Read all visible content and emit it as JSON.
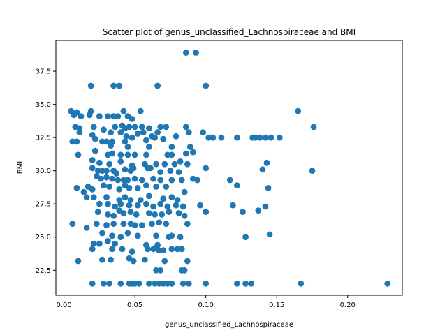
{
  "chart_data": {
    "type": "scatter",
    "title": "Scatter plot of genus_unclassified_Lachnospiraceae and BMI",
    "xlabel": "genus_unclassified_Lachnospiraceae",
    "ylabel": "BMI",
    "xlim": [
      -0.0057,
      0.2385
    ],
    "ylim": [
      20.62,
      39.82
    ],
    "xticks": [
      0.0,
      0.05,
      0.1,
      0.15,
      0.2
    ],
    "xtick_labels": [
      "0.00",
      "0.05",
      "0.10",
      "0.15",
      "0.20"
    ],
    "yticks": [
      22.5,
      25.0,
      27.5,
      30.0,
      32.5,
      35.0,
      37.5
    ],
    "ytick_labels": [
      "22.5",
      "25.0",
      "27.5",
      "30.0",
      "32.5",
      "35.0",
      "37.5"
    ],
    "grid": false,
    "marker_color": "#1f77b4",
    "points": [
      [
        0.086,
        38.9
      ],
      [
        0.093,
        38.9
      ],
      [
        0.019,
        36.4
      ],
      [
        0.035,
        36.4
      ],
      [
        0.039,
        36.4
      ],
      [
        0.066,
        36.4
      ],
      [
        0.1,
        36.4
      ],
      [
        0.005,
        34.5
      ],
      [
        0.009,
        34.4
      ],
      [
        0.019,
        34.5
      ],
      [
        0.042,
        34.5
      ],
      [
        0.054,
        34.5
      ],
      [
        0.165,
        34.5
      ],
      [
        0.007,
        34.2
      ],
      [
        0.012,
        34.1
      ],
      [
        0.018,
        34.2
      ],
      [
        0.025,
        34.1
      ],
      [
        0.031,
        34.1
      ],
      [
        0.035,
        34.1
      ],
      [
        0.038,
        34.1
      ],
      [
        0.045,
        34.1
      ],
      [
        0.048,
        33.9
      ],
      [
        0.008,
        33.3
      ],
      [
        0.011,
        33.2
      ],
      [
        0.021,
        33.3
      ],
      [
        0.028,
        33.1
      ],
      [
        0.036,
        33.3
      ],
      [
        0.041,
        33.4
      ],
      [
        0.043,
        33.2
      ],
      [
        0.046,
        33.3
      ],
      [
        0.05,
        33.3
      ],
      [
        0.055,
        33.3
      ],
      [
        0.06,
        33.2
      ],
      [
        0.068,
        33.3
      ],
      [
        0.072,
        33.3
      ],
      [
        0.086,
        33.3
      ],
      [
        0.176,
        33.3
      ],
      [
        0.011,
        32.9
      ],
      [
        0.02,
        32.7
      ],
      [
        0.033,
        32.9
      ],
      [
        0.04,
        32.9
      ],
      [
        0.044,
        32.6
      ],
      [
        0.052,
        32.8
      ],
      [
        0.056,
        32.9
      ],
      [
        0.062,
        32.6
      ],
      [
        0.066,
        32.9
      ],
      [
        0.079,
        32.6
      ],
      [
        0.088,
        32.9
      ],
      [
        0.098,
        32.9
      ],
      [
        0.006,
        32.2
      ],
      [
        0.009,
        32.2
      ],
      [
        0.022,
        32.4
      ],
      [
        0.027,
        32.2
      ],
      [
        0.03,
        32.2
      ],
      [
        0.034,
        32.2
      ],
      [
        0.043,
        32.2
      ],
      [
        0.048,
        32.5
      ],
      [
        0.058,
        32.3
      ],
      [
        0.064,
        32.5
      ],
      [
        0.07,
        32.4
      ],
      [
        0.102,
        32.5
      ],
      [
        0.105,
        32.5
      ],
      [
        0.111,
        32.5
      ],
      [
        0.122,
        32.5
      ],
      [
        0.133,
        32.5
      ],
      [
        0.135,
        32.5
      ],
      [
        0.138,
        32.5
      ],
      [
        0.142,
        32.5
      ],
      [
        0.146,
        32.5
      ],
      [
        0.152,
        32.5
      ],
      [
        0.033,
        31.9
      ],
      [
        0.045,
        31.8
      ],
      [
        0.06,
        31.8
      ],
      [
        0.076,
        31.8
      ],
      [
        0.089,
        31.8
      ],
      [
        0.022,
        31.5
      ],
      [
        0.031,
        31.2
      ],
      [
        0.034,
        31.3
      ],
      [
        0.04,
        31.2
      ],
      [
        0.045,
        31.2
      ],
      [
        0.05,
        31.2
      ],
      [
        0.058,
        31.2
      ],
      [
        0.073,
        31.2
      ],
      [
        0.076,
        31.2
      ],
      [
        0.086,
        31.3
      ],
      [
        0.091,
        31.4
      ],
      [
        0.01,
        31.2
      ],
      [
        0.02,
        30.8
      ],
      [
        0.025,
        30.6
      ],
      [
        0.032,
        30.5
      ],
      [
        0.04,
        30.7
      ],
      [
        0.048,
        30.4
      ],
      [
        0.057,
        30.5
      ],
      [
        0.065,
        30.5
      ],
      [
        0.071,
        30.5
      ],
      [
        0.078,
        30.5
      ],
      [
        0.082,
        30.7
      ],
      [
        0.087,
        30.5
      ],
      [
        0.143,
        30.6
      ],
      [
        0.02,
        30.2
      ],
      [
        0.024,
        30.0
      ],
      [
        0.027,
        30.0
      ],
      [
        0.03,
        30.0
      ],
      [
        0.035,
        30.0
      ],
      [
        0.037,
        29.8
      ],
      [
        0.043,
        30.1
      ],
      [
        0.047,
        30.0
      ],
      [
        0.049,
        30.2
      ],
      [
        0.059,
        30.2
      ],
      [
        0.061,
        30.2
      ],
      [
        0.068,
        29.9
      ],
      [
        0.075,
        30.0
      ],
      [
        0.081,
        29.9
      ],
      [
        0.1,
        30.2
      ],
      [
        0.14,
        30.1
      ],
      [
        0.175,
        30.0
      ],
      [
        0.023,
        29.6
      ],
      [
        0.026,
        29.4
      ],
      [
        0.03,
        29.5
      ],
      [
        0.034,
        29.4
      ],
      [
        0.038,
        29.3
      ],
      [
        0.042,
        29.3
      ],
      [
        0.045,
        29.3
      ],
      [
        0.05,
        29.4
      ],
      [
        0.055,
        29.3
      ],
      [
        0.063,
        29.4
      ],
      [
        0.068,
        29.3
      ],
      [
        0.076,
        29.3
      ],
      [
        0.083,
        29.3
      ],
      [
        0.091,
        29.4
      ],
      [
        0.094,
        29.3
      ],
      [
        0.117,
        29.3
      ],
      [
        0.009,
        28.7
      ],
      [
        0.014,
        28.4
      ],
      [
        0.017,
        28.8
      ],
      [
        0.02,
        28.6
      ],
      [
        0.028,
        28.9
      ],
      [
        0.032,
        28.8
      ],
      [
        0.039,
        28.6
      ],
      [
        0.043,
        28.9
      ],
      [
        0.046,
        28.7
      ],
      [
        0.052,
        28.7
      ],
      [
        0.058,
        28.9
      ],
      [
        0.065,
        28.8
      ],
      [
        0.072,
        28.8
      ],
      [
        0.085,
        28.4
      ],
      [
        0.122,
        28.9
      ],
      [
        0.144,
        28.7
      ],
      [
        0.016,
        28.0
      ],
      [
        0.021,
        28.0
      ],
      [
        0.03,
        28.0
      ],
      [
        0.039,
        27.8
      ],
      [
        0.043,
        28.0
      ],
      [
        0.047,
        27.8
      ],
      [
        0.054,
        27.8
      ],
      [
        0.06,
        28.1
      ],
      [
        0.07,
        27.9
      ],
      [
        0.076,
        28.0
      ],
      [
        0.08,
        27.8
      ],
      [
        0.025,
        27.5
      ],
      [
        0.031,
        27.5
      ],
      [
        0.036,
        27.3
      ],
      [
        0.04,
        27.5
      ],
      [
        0.046,
        27.4
      ],
      [
        0.052,
        27.4
      ],
      [
        0.058,
        27.5
      ],
      [
        0.063,
        27.3
      ],
      [
        0.068,
        27.5
      ],
      [
        0.073,
        27.3
      ],
      [
        0.079,
        27.4
      ],
      [
        0.084,
        27.3
      ],
      [
        0.096,
        27.4
      ],
      [
        0.119,
        27.4
      ],
      [
        0.142,
        27.3
      ],
      [
        0.137,
        27.0
      ],
      [
        0.024,
        26.9
      ],
      [
        0.031,
        26.7
      ],
      [
        0.035,
        26.6
      ],
      [
        0.039,
        27.0
      ],
      [
        0.042,
        26.8
      ],
      [
        0.047,
        26.9
      ],
      [
        0.051,
        26.7
      ],
      [
        0.06,
        26.8
      ],
      [
        0.064,
        26.7
      ],
      [
        0.069,
        26.7
      ],
      [
        0.074,
        26.9
      ],
      [
        0.081,
        26.8
      ],
      [
        0.085,
        26.6
      ],
      [
        0.1,
        26.9
      ],
      [
        0.126,
        26.9
      ],
      [
        0.006,
        26.0
      ],
      [
        0.016,
        25.7
      ],
      [
        0.023,
        26.0
      ],
      [
        0.03,
        25.9
      ],
      [
        0.035,
        26.0
      ],
      [
        0.042,
        26.0
      ],
      [
        0.047,
        26.0
      ],
      [
        0.05,
        25.9
      ],
      [
        0.055,
        25.9
      ],
      [
        0.062,
        26.0
      ],
      [
        0.067,
        26.1
      ],
      [
        0.072,
        26.0
      ],
      [
        0.087,
        26.0
      ],
      [
        0.027,
        25.3
      ],
      [
        0.034,
        25.1
      ],
      [
        0.04,
        25.0
      ],
      [
        0.045,
        25.3
      ],
      [
        0.052,
        25.1
      ],
      [
        0.065,
        25.1
      ],
      [
        0.074,
        25.0
      ],
      [
        0.076,
        25.1
      ],
      [
        0.082,
        25.0
      ],
      [
        0.128,
        25.0
      ],
      [
        0.145,
        25.2
      ],
      [
        0.021,
        24.5
      ],
      [
        0.025,
        24.5
      ],
      [
        0.031,
        24.7
      ],
      [
        0.036,
        24.5
      ],
      [
        0.058,
        24.4
      ],
      [
        0.066,
        24.4
      ],
      [
        0.02,
        24.1
      ],
      [
        0.034,
        24.1
      ],
      [
        0.041,
        24.1
      ],
      [
        0.048,
        23.9
      ],
      [
        0.059,
        24.1
      ],
      [
        0.063,
        24.1
      ],
      [
        0.067,
        24.0
      ],
      [
        0.07,
        24.0
      ],
      [
        0.076,
        24.1
      ],
      [
        0.08,
        24.1
      ],
      [
        0.083,
        24.1
      ],
      [
        0.01,
        23.2
      ],
      [
        0.027,
        23.3
      ],
      [
        0.033,
        23.3
      ],
      [
        0.046,
        23.4
      ],
      [
        0.049,
        23.2
      ],
      [
        0.057,
        23.3
      ],
      [
        0.071,
        23.2
      ],
      [
        0.087,
        23.2
      ],
      [
        0.065,
        22.5
      ],
      [
        0.068,
        22.5
      ],
      [
        0.083,
        22.5
      ],
      [
        0.085,
        22.5
      ],
      [
        0.02,
        21.5
      ],
      [
        0.028,
        21.5
      ],
      [
        0.032,
        21.5
      ],
      [
        0.04,
        21.5
      ],
      [
        0.046,
        21.5
      ],
      [
        0.048,
        21.5
      ],
      [
        0.05,
        21.5
      ],
      [
        0.053,
        21.5
      ],
      [
        0.06,
        21.5
      ],
      [
        0.064,
        21.5
      ],
      [
        0.067,
        21.5
      ],
      [
        0.07,
        21.5
      ],
      [
        0.073,
        21.5
      ],
      [
        0.076,
        21.5
      ],
      [
        0.084,
        21.5
      ],
      [
        0.088,
        21.5
      ],
      [
        0.1,
        21.5
      ],
      [
        0.122,
        21.5
      ],
      [
        0.128,
        21.5
      ],
      [
        0.132,
        21.5
      ],
      [
        0.167,
        21.5
      ],
      [
        0.228,
        21.5
      ]
    ]
  }
}
